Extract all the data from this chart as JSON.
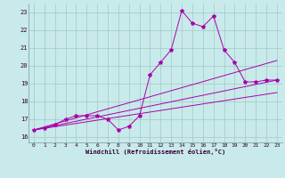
{
  "xlabel": "Windchill (Refroidissement éolien,°C)",
  "bg_color": "#c8eaea",
  "grid_color": "#a0c8c8",
  "line_color": "#aa00aa",
  "xlim": [
    -0.5,
    23.5
  ],
  "ylim": [
    15.7,
    23.5
  ],
  "xticks": [
    0,
    1,
    2,
    3,
    4,
    5,
    6,
    7,
    8,
    9,
    10,
    11,
    12,
    13,
    14,
    15,
    16,
    17,
    18,
    19,
    20,
    21,
    22,
    23
  ],
  "yticks": [
    16,
    17,
    18,
    19,
    20,
    21,
    22,
    23
  ],
  "main_series_x": [
    0,
    1,
    2,
    3,
    4,
    5,
    6,
    7,
    8,
    9,
    10,
    11,
    12,
    13,
    14,
    15,
    16,
    17,
    18,
    19,
    20,
    21,
    22,
    23
  ],
  "main_series_y": [
    16.4,
    16.5,
    16.7,
    17.0,
    17.2,
    17.2,
    17.2,
    17.0,
    16.4,
    16.6,
    17.2,
    19.5,
    20.2,
    20.9,
    23.1,
    22.4,
    22.2,
    22.8,
    20.9,
    20.2,
    19.1,
    19.1,
    19.2,
    19.2
  ],
  "trend1_x": [
    0,
    23
  ],
  "trend1_y": [
    16.4,
    20.3
  ],
  "trend2_x": [
    0,
    23
  ],
  "trend2_y": [
    16.4,
    19.2
  ],
  "trend3_x": [
    0,
    23
  ],
  "trend3_y": [
    16.4,
    18.5
  ]
}
